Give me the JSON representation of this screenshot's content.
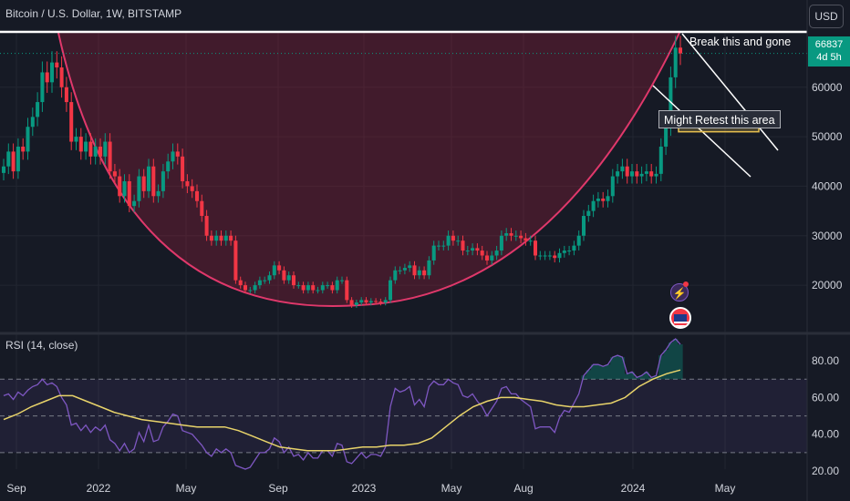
{
  "header": {
    "title": "Bitcoin / U.S. Dollar, 1W, BITSTAMP",
    "currency": "USD"
  },
  "price_badge": {
    "price": "66837",
    "countdown": "4d 5h"
  },
  "annotations": {
    "break_text": "Break this and gone",
    "retest_text": "Might Retest this area"
  },
  "rsi_panel": {
    "title": "RSI (14, close)"
  },
  "icons": {
    "event_icon": "bolt-icon",
    "flag_icon": "us-flag-icon"
  },
  "colors": {
    "background": "#161a25",
    "up": "#089981",
    "down": "#f23645",
    "cup": "#e0386b",
    "rsi_line": "#7e57c2",
    "rsi_ma": "#e8d36a"
  },
  "chart_data": [
    {
      "type": "candlestick",
      "title": "Bitcoin / U.S. Dollar, 1W, BITSTAMP",
      "x_ticks": [
        "Sep",
        "2022",
        "May",
        "Sep",
        "2023",
        "May",
        "Aug",
        "2024",
        "May"
      ],
      "y_ticks": [
        20000,
        30000,
        40000,
        50000,
        60000
      ],
      "ylim": [
        11000,
        71000
      ],
      "last_price": 66837,
      "close_series": [
        44000,
        47000,
        43000,
        48000,
        47000,
        52000,
        54000,
        57000,
        63000,
        61000,
        65000,
        64000,
        60000,
        57000,
        49000,
        50000,
        47000,
        49000,
        46000,
        48000,
        46000,
        49000,
        43000,
        42000,
        38000,
        41000,
        36000,
        37000,
        42000,
        39000,
        44000,
        38000,
        39000,
        43000,
        45000,
        47000,
        46000,
        41000,
        40000,
        39000,
        37000,
        34000,
        30000,
        29000,
        30000,
        29000,
        30000,
        29000,
        21000,
        20000,
        19000,
        19000,
        20000,
        21000,
        21000,
        22000,
        24000,
        23000,
        21000,
        22000,
        20000,
        20000,
        19000,
        20000,
        19000,
        19000,
        20000,
        20000,
        19000,
        21000,
        21000,
        17000,
        16000,
        16500,
        17000,
        16500,
        16800,
        16700,
        16500,
        17000,
        21000,
        23000,
        23000,
        23500,
        24000,
        22000,
        23000,
        22000,
        25000,
        28000,
        28000,
        28000,
        30000,
        29000,
        29000,
        27000,
        27000,
        27500,
        27000,
        26000,
        25000,
        26000,
        27000,
        30000,
        30500,
        30000,
        30000,
        29500,
        29000,
        29000,
        26000,
        26000,
        26000,
        26000,
        25500,
        26500,
        27000,
        27000,
        28000,
        30000,
        34000,
        35000,
        37000,
        37500,
        37000,
        38000,
        42000,
        43000,
        44000,
        42000,
        43000,
        42000,
        42500,
        43000,
        42000,
        42500,
        48000,
        52000,
        62000,
        68000,
        66837
      ],
      "rsi": [
        61,
        62,
        59,
        63,
        61,
        64,
        66,
        67,
        70,
        67,
        68,
        66,
        60,
        56,
        45,
        46,
        42,
        45,
        41,
        44,
        42,
        45,
        37,
        35,
        31,
        35,
        30,
        32,
        41,
        36,
        45,
        36,
        37,
        44,
        47,
        51,
        50,
        42,
        41,
        40,
        37,
        34,
        30,
        28,
        32,
        30,
        32,
        30,
        23,
        22,
        21,
        22,
        26,
        30,
        30,
        32,
        38,
        36,
        30,
        33,
        28,
        29,
        26,
        30,
        27,
        27,
        31,
        31,
        28,
        35,
        34,
        25,
        24,
        27,
        30,
        27,
        29,
        29,
        28,
        33,
        55,
        65,
        63,
        64,
        66,
        56,
        59,
        55,
        66,
        69,
        67,
        67,
        70,
        68,
        67,
        61,
        60,
        62,
        58,
        55,
        50,
        54,
        58,
        65,
        66,
        62,
        62,
        59,
        57,
        55,
        43,
        44,
        44,
        44,
        41,
        49,
        53,
        52,
        57,
        62,
        72,
        75,
        78,
        78,
        77,
        78,
        82,
        83,
        82,
        73,
        74,
        71,
        72,
        74,
        71,
        72,
        83,
        86,
        90,
        92,
        89
      ],
      "rsi_ma": [
        48,
        51,
        55,
        58,
        61,
        61,
        58,
        55,
        52,
        50,
        48,
        47,
        46,
        45,
        44,
        44,
        44,
        42,
        39,
        36,
        33,
        32,
        31,
        31,
        31,
        32,
        33,
        33,
        34,
        34,
        35,
        38,
        44,
        50,
        55,
        58,
        60,
        60,
        59,
        58,
        56,
        55,
        55,
        56,
        57,
        60,
        66,
        70,
        73,
        75
      ],
      "rsi_ticks": [
        20,
        40,
        60,
        80
      ],
      "rsi_levels": [
        30,
        50,
        70
      ],
      "rsi_ylim": [
        20,
        92
      ]
    }
  ]
}
